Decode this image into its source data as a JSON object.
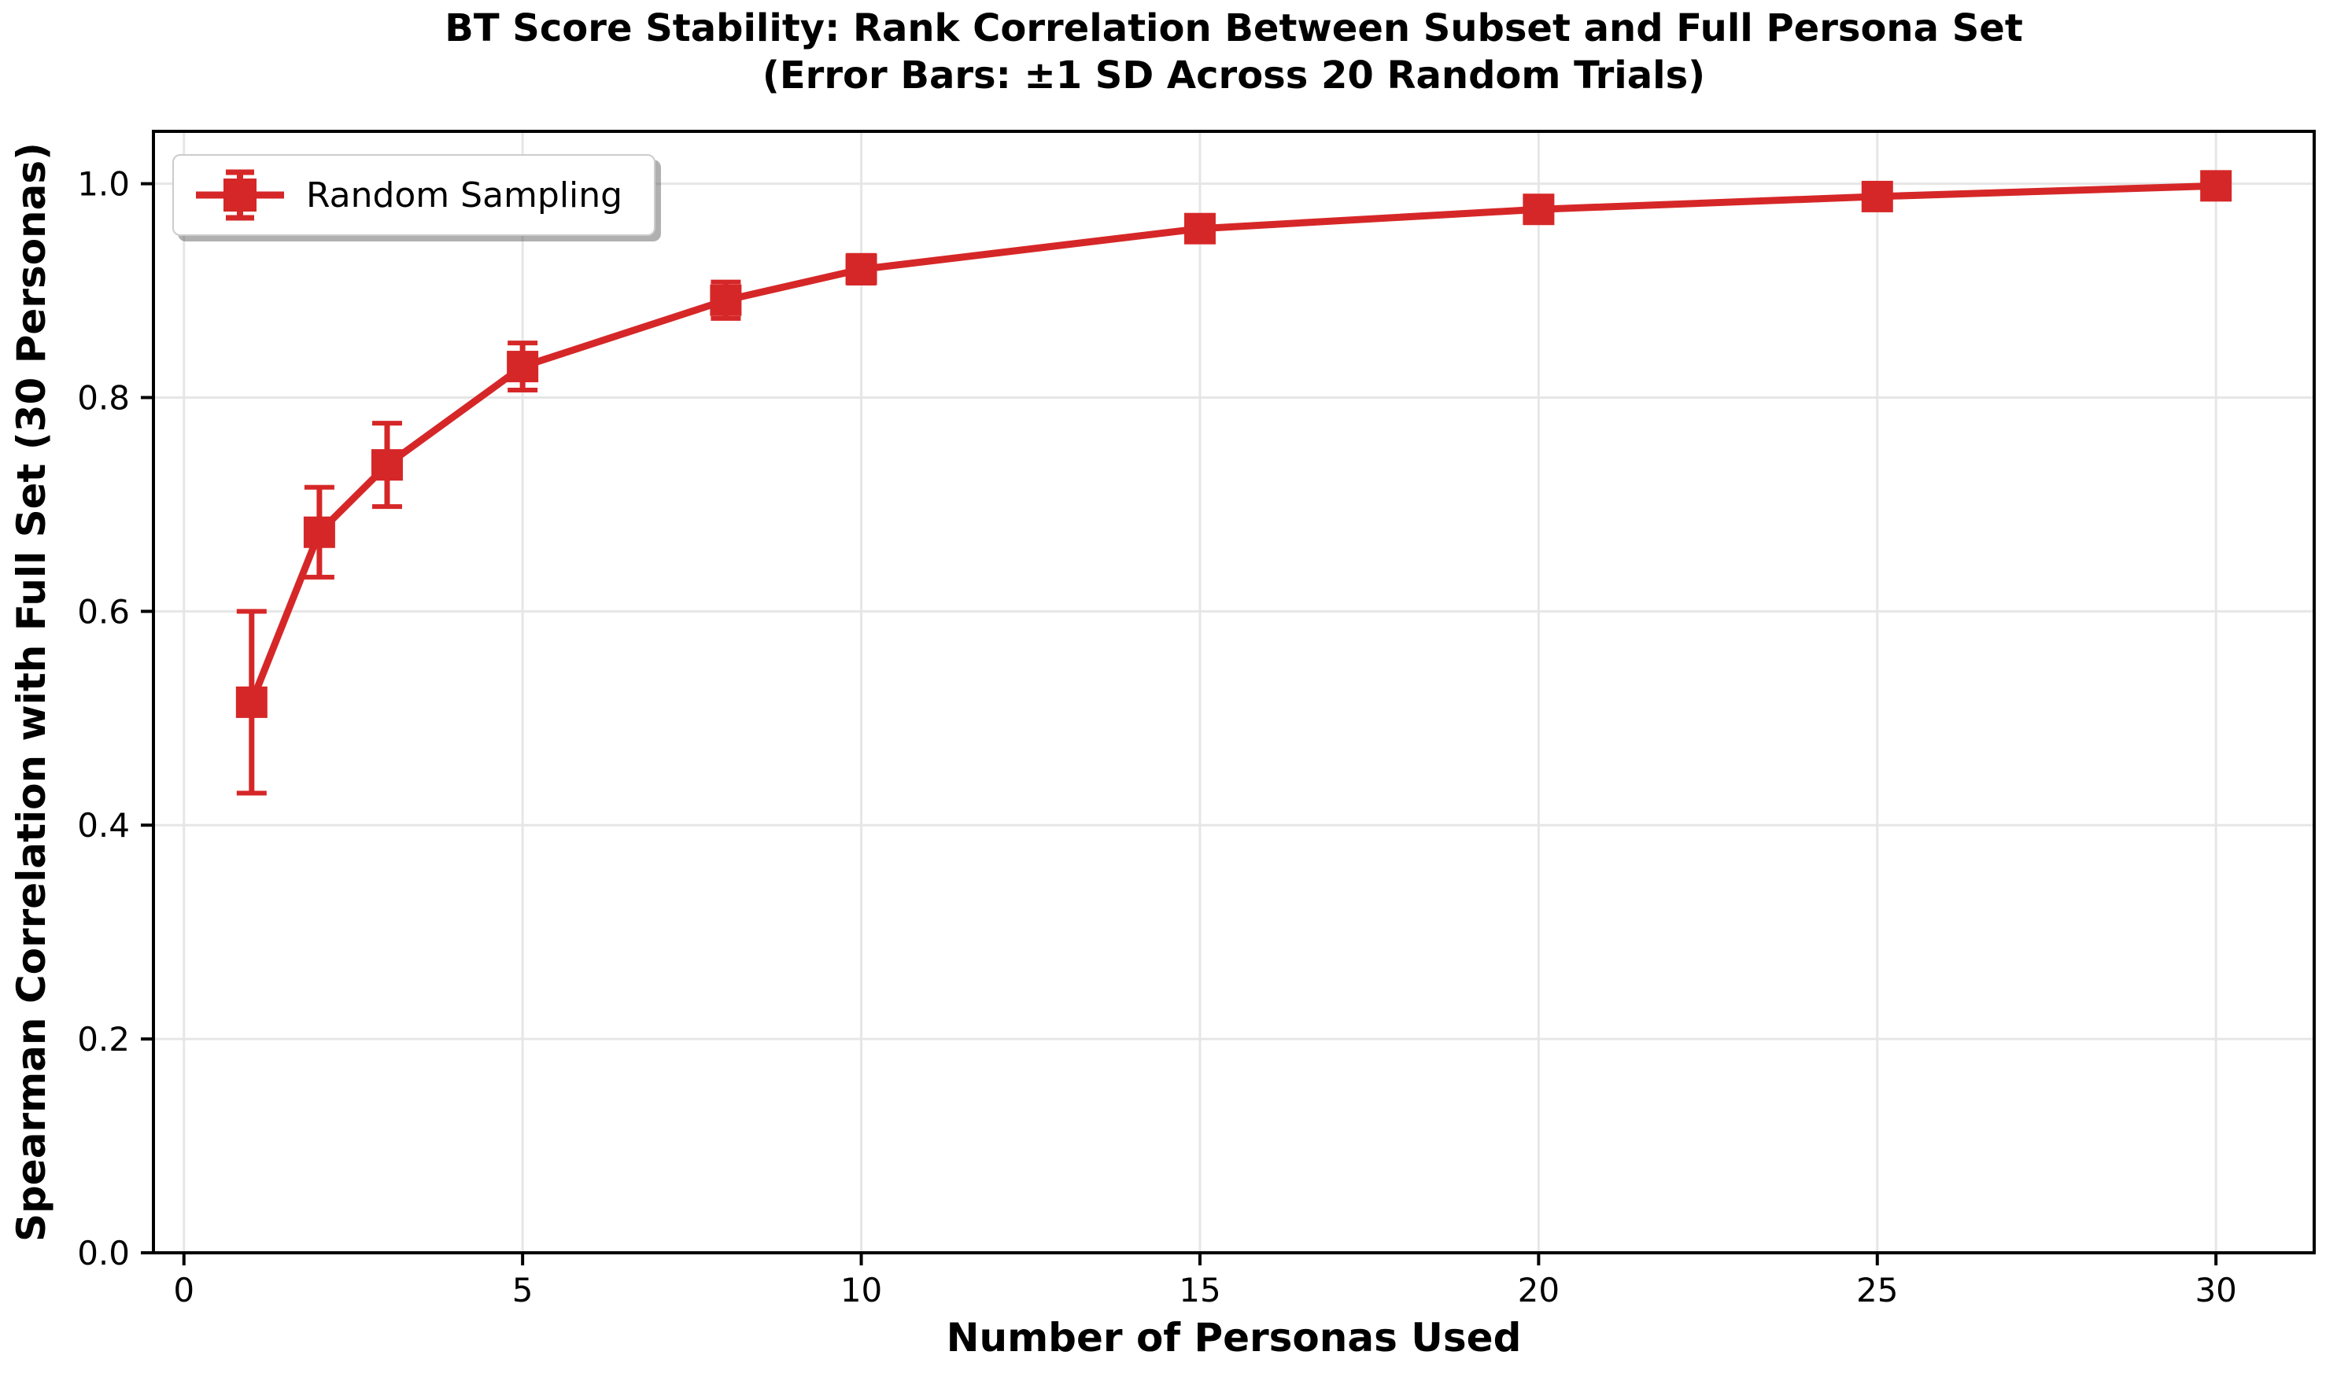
{
  "figure": {
    "title_line1": "BT Score Stability: Rank Correlation Between Subset and Full Persona Set",
    "title_line2": "(Error Bars: ±1 SD Across 20 Random Trials)",
    "xlabel": "Number of Personas Used",
    "ylabel": "Spearman Correlation with Full Set (30 Personas)",
    "legend_label": "Random Sampling",
    "colors": {
      "series": "#d62728",
      "grid": "#e6e6e6",
      "spine": "#000000",
      "tick": "#000000",
      "legend_border": "#cccccc",
      "background": "#ffffff"
    }
  },
  "chart_data": {
    "type": "line",
    "title": "BT Score Stability: Rank Correlation Between Subset and Full Persona Set (Error Bars: ±1 SD Across 20 Random Trials)",
    "xlabel": "Number of Personas Used",
    "ylabel": "Spearman Correlation with Full Set (30 Personas)",
    "grid": true,
    "legend_position": "upper left",
    "error_bars": "±1 SD across 20 random trials",
    "xlim": [
      -0.45,
      31.45
    ],
    "ylim": [
      0.0,
      1.049
    ],
    "xticks": [
      0,
      5,
      10,
      15,
      20,
      25,
      30
    ],
    "xtick_labels": [
      "0",
      "5",
      "10",
      "15",
      "20",
      "25",
      "30"
    ],
    "yticks": [
      0.0,
      0.2,
      0.4,
      0.6,
      0.8,
      1.0
    ],
    "ytick_labels": [
      "0.0",
      "0.2",
      "0.4",
      "0.6",
      "0.8",
      "1.0"
    ],
    "series": [
      {
        "name": "Random Sampling",
        "color": "#d62728",
        "marker": "square",
        "x": [
          1,
          2,
          3,
          5,
          8,
          10,
          15,
          20,
          25,
          30
        ],
        "y": [
          0.515,
          0.674,
          0.737,
          0.829,
          0.891,
          0.92,
          0.958,
          0.976,
          0.988,
          0.998
        ],
        "sd": [
          0.085,
          0.042,
          0.039,
          0.022,
          0.017,
          0.013,
          0.007,
          0.005,
          0.004,
          0.002
        ]
      }
    ]
  }
}
